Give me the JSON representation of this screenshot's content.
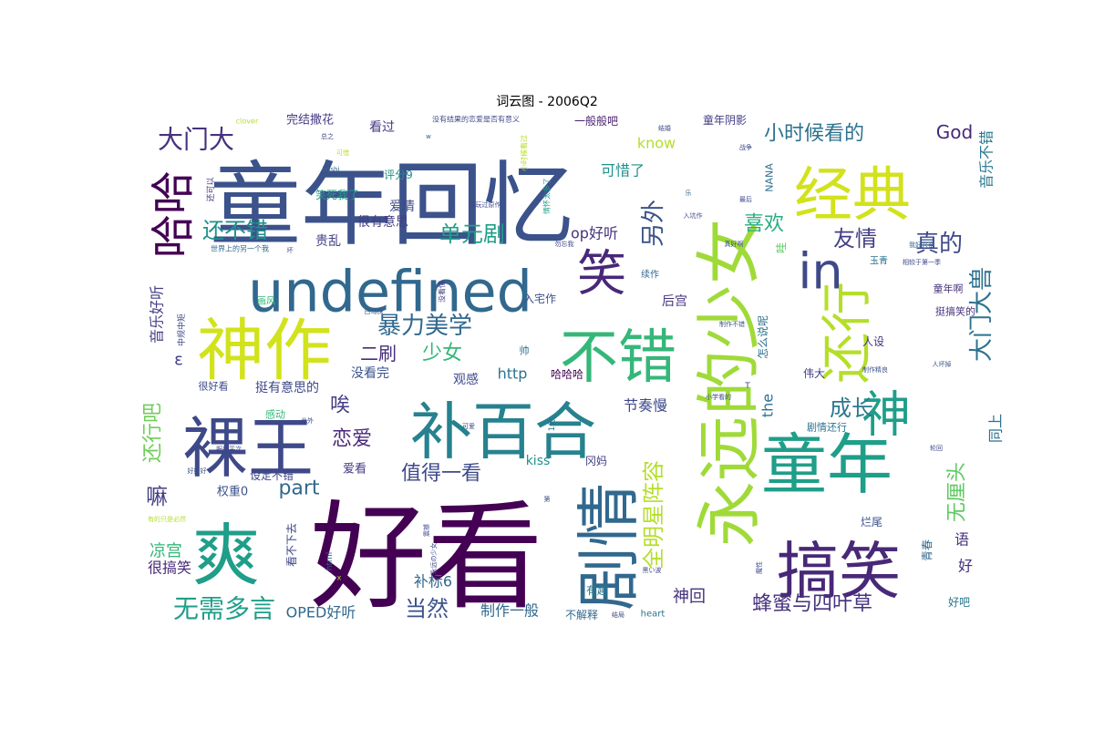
{
  "title": "词云图 - 2006Q2",
  "chart_data": {
    "type": "wordcloud",
    "title": "词云图 - 2006Q2",
    "words": [
      {
        "text": "好看",
        "weight": 100
      },
      {
        "text": "童年回忆",
        "weight": 80
      },
      {
        "text": "永远的少女",
        "weight": 80
      },
      {
        "text": "神作",
        "weight": 62
      },
      {
        "text": "undefined",
        "weight": 58
      },
      {
        "text": "裸王",
        "weight": 62
      },
      {
        "text": "补百合",
        "weight": 60
      },
      {
        "text": "剧情",
        "weight": 60
      },
      {
        "text": "搞笑",
        "weight": 58
      },
      {
        "text": "童年",
        "weight": 62
      },
      {
        "text": "经典",
        "weight": 55
      },
      {
        "text": "不错",
        "weight": 55
      },
      {
        "text": "还行",
        "weight": 55
      },
      {
        "text": "爽",
        "weight": 62
      },
      {
        "text": "哈哈",
        "weight": 48
      },
      {
        "text": "笑",
        "weight": 48
      },
      {
        "text": "in",
        "weight": 50
      },
      {
        "text": "神",
        "weight": 50
      },
      {
        "text": "全明星阵容",
        "weight": 30
      },
      {
        "text": "无需多言",
        "weight": 28
      },
      {
        "text": "暴力美学",
        "weight": 28
      },
      {
        "text": "大门大",
        "weight": 30
      },
      {
        "text": "大门大兽",
        "weight": 26
      },
      {
        "text": "成长",
        "weight": 28
      },
      {
        "text": "少女",
        "weight": 24
      },
      {
        "text": "真的",
        "weight": 26
      },
      {
        "text": "友情",
        "weight": 24
      },
      {
        "text": "单元剧",
        "weight": 24
      },
      {
        "text": "喜欢",
        "weight": 22
      },
      {
        "text": "另外",
        "weight": 26
      },
      {
        "text": "还不错",
        "weight": 24
      },
      {
        "text": "小时候看的",
        "weight": 22
      },
      {
        "text": "值得一看",
        "weight": 22
      },
      {
        "text": "恋爱",
        "weight": 22
      },
      {
        "text": "蜂蜜与四叶草",
        "weight": 22
      },
      {
        "text": "当然",
        "weight": 24
      },
      {
        "text": "无厘头",
        "weight": 22
      },
      {
        "text": "还行吧",
        "weight": 22
      },
      {
        "text": "part",
        "weight": 22
      },
      {
        "text": "唉",
        "weight": 22
      },
      {
        "text": "嘛",
        "weight": 24
      },
      {
        "text": "二刷",
        "weight": 20
      },
      {
        "text": "God",
        "weight": 20
      },
      {
        "text": "音乐不错",
        "weight": 16
      },
      {
        "text": "音乐好听",
        "weight": 16
      },
      {
        "text": "凉宫",
        "weight": 18
      },
      {
        "text": "很搞笑",
        "weight": 16
      },
      {
        "text": "OPED好听",
        "weight": 16
      },
      {
        "text": "制作一般",
        "weight": 16
      },
      {
        "text": "神回",
        "weight": 18
      },
      {
        "text": "节奏慢",
        "weight": 16
      },
      {
        "text": "the",
        "weight": 16
      },
      {
        "text": "同上",
        "weight": 16
      },
      {
        "text": "op好听",
        "weight": 16
      },
      {
        "text": "可惜了",
        "weight": 16
      },
      {
        "text": "know",
        "weight": 16
      },
      {
        "text": "http",
        "weight": 16
      },
      {
        "text": "kiss",
        "weight": 14
      },
      {
        "text": "补标6",
        "weight": 16
      },
      {
        "text": "没看完",
        "weight": 14
      },
      {
        "text": "挺有意思的",
        "weight": 14
      },
      {
        "text": "贵乱",
        "weight": 14
      },
      {
        "text": "很有意思",
        "weight": 14
      },
      {
        "text": "爱情",
        "weight": 14
      },
      {
        "text": "笑死我了",
        "weight": 12
      },
      {
        "text": "完结撒花",
        "weight": 13
      },
      {
        "text": "看过",
        "weight": 14
      },
      {
        "text": "评分9",
        "weight": 12
      },
      {
        "text": "一般般吧",
        "weight": 12
      },
      {
        "text": "童年阴影",
        "weight": 12
      },
      {
        "text": "入宅作",
        "weight": 12
      },
      {
        "text": "后宫",
        "weight": 14
      },
      {
        "text": "观感",
        "weight": 14
      },
      {
        "text": "哈哈哈",
        "weight": 12
      },
      {
        "text": "爱看",
        "weight": 13
      },
      {
        "text": "权重0",
        "weight": 13
      },
      {
        "text": "设定不错",
        "weight": 12
      },
      {
        "text": "看不下去",
        "weight": 12
      },
      {
        "text": "语",
        "weight": 16
      },
      {
        "text": "好",
        "weight": 16
      },
      {
        "text": "青春",
        "weight": 12
      },
      {
        "text": "烂尾",
        "weight": 12
      },
      {
        "text": "好吧",
        "weight": 12
      },
      {
        "text": "有趣",
        "weight": 12
      },
      {
        "text": "不解释",
        "weight": 12
      },
      {
        "text": "heart",
        "weight": 10
      },
      {
        "text": "冈妈",
        "weight": 12
      },
      {
        "text": "伟大",
        "weight": 12
      },
      {
        "text": "人设",
        "weight": 12
      },
      {
        "text": "剧情还行",
        "weight": 11
      },
      {
        "text": "挺搞笑的",
        "weight": 11
      },
      {
        "text": "童年啊",
        "weight": 11
      },
      {
        "text": "续作",
        "weight": 10
      },
      {
        "text": "玉青",
        "weight": 10
      },
      {
        "text": "NANA",
        "weight": 11
      },
      {
        "text": "怎么说呢",
        "weight": 12
      },
      {
        "text": "哇",
        "weight": 12
      },
      {
        "text": "帅",
        "weight": 11
      },
      {
        "text": "ε",
        "weight": 18
      },
      {
        "text": "感动",
        "weight": 11
      },
      {
        "text": "很好看",
        "weight": 11
      },
      {
        "text": "画风",
        "weight": 10
      },
      {
        "text": "中规中矩",
        "weight": 9
      },
      {
        "text": "世界上的另一个我",
        "weight": 8
      },
      {
        "text": "还可以",
        "weight": 9
      },
      {
        "text": "clover",
        "weight": 8
      },
      {
        "text": "没有结果的恋爱是否有意义",
        "weight": 8
      },
      {
        "text": "小时候看过",
        "weight": 8
      },
      {
        "text": "没看懂",
        "weight": 8
      },
      {
        "text": "情怀太多了",
        "weight": 8
      },
      {
        "text": "没玩过原作",
        "weight": 7
      },
      {
        "text": "bushi",
        "weight": 7
      },
      {
        "text": "我好兴奋",
        "weight": 7
      },
      {
        "text": "相较于第一季",
        "weight": 7
      },
      {
        "text": "制作不错",
        "weight": 7
      },
      {
        "text": "制作精良",
        "weight": 7
      },
      {
        "text": "人坏掉",
        "weight": 7
      },
      {
        "text": "小学看的",
        "weight": 7
      },
      {
        "text": "有的只是必然",
        "weight": 7
      },
      {
        "text": "服部平次",
        "weight": 7
      },
      {
        "text": "好好好",
        "weight": 7
      },
      {
        "text": "永远の少女",
        "weight": 7
      },
      {
        "text": "震撼",
        "weight": 7
      },
      {
        "text": "黑い波",
        "weight": 7
      },
      {
        "text": "白马探",
        "weight": 7
      },
      {
        "text": "真好啊",
        "weight": 7
      },
      {
        "text": "入坑作",
        "weight": 7
      },
      {
        "text": "战争",
        "weight": 7
      },
      {
        "text": "结婚",
        "weight": 7
      },
      {
        "text": "最后",
        "weight": 7
      },
      {
        "text": "可爱",
        "weight": 7
      },
      {
        "text": "此外",
        "weight": 7
      },
      {
        "text": "轮回",
        "weight": 7
      },
      {
        "text": "魔性",
        "weight": 7
      },
      {
        "text": "总之",
        "weight": 7
      },
      {
        "text": "可惜",
        "weight": 7
      },
      {
        "text": "结局",
        "weight": 7
      },
      {
        "text": "乐",
        "weight": 7
      },
      {
        "text": "第",
        "weight": 7
      },
      {
        "text": "勿忘我",
        "weight": 7
      },
      {
        "text": "坏",
        "weight": 7
      },
      {
        "text": "T",
        "weight": 9
      },
      {
        "text": "html",
        "weight": 9
      },
      {
        "text": "1分",
        "weight": 9
      },
      {
        "text": "x",
        "weight": 8
      },
      {
        "text": "w",
        "weight": 7
      }
    ]
  }
}
